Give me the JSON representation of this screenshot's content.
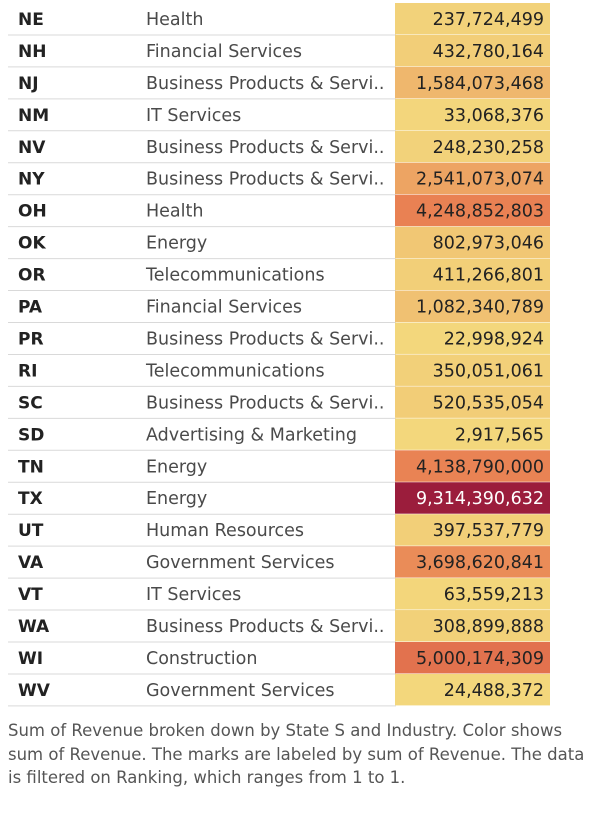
{
  "chart_data": {
    "type": "table",
    "measure": "Sum of Revenue",
    "color_scale": {
      "min_color": "#f3d77c",
      "mid_color": "#e8794f",
      "max_color": "#9b1d3c",
      "min": 2917565,
      "max": 9314390632
    },
    "rows": [
      {
        "state": "NE",
        "industry": "Health",
        "revenue": 237724499,
        "revenue_label": "237,724,499"
      },
      {
        "state": "NH",
        "industry": "Financial Services",
        "revenue": 432780164,
        "revenue_label": "432,780,164"
      },
      {
        "state": "NJ",
        "industry": "Business Products & Servi..",
        "revenue": 1584073468,
        "revenue_label": "1,584,073,468"
      },
      {
        "state": "NM",
        "industry": "IT Services",
        "revenue": 33068376,
        "revenue_label": "33,068,376"
      },
      {
        "state": "NV",
        "industry": "Business Products & Servi..",
        "revenue": 248230258,
        "revenue_label": "248,230,258"
      },
      {
        "state": "NY",
        "industry": "Business Products & Servi..",
        "revenue": 2541073074,
        "revenue_label": "2,541,073,074"
      },
      {
        "state": "OH",
        "industry": "Health",
        "revenue": 4248852803,
        "revenue_label": "4,248,852,803"
      },
      {
        "state": "OK",
        "industry": "Energy",
        "revenue": 802973046,
        "revenue_label": "802,973,046"
      },
      {
        "state": "OR",
        "industry": "Telecommunications",
        "revenue": 411266801,
        "revenue_label": "411,266,801"
      },
      {
        "state": "PA",
        "industry": "Financial Services",
        "revenue": 1082340789,
        "revenue_label": "1,082,340,789"
      },
      {
        "state": "PR",
        "industry": "Business Products & Servi..",
        "revenue": 22998924,
        "revenue_label": "22,998,924"
      },
      {
        "state": "RI",
        "industry": "Telecommunications",
        "revenue": 350051061,
        "revenue_label": "350,051,061"
      },
      {
        "state": "SC",
        "industry": "Business Products & Servi..",
        "revenue": 520535054,
        "revenue_label": "520,535,054"
      },
      {
        "state": "SD",
        "industry": "Advertising & Marketing",
        "revenue": 2917565,
        "revenue_label": "2,917,565"
      },
      {
        "state": "TN",
        "industry": "Energy",
        "revenue": 4138790000,
        "revenue_label": "4,138,790,000"
      },
      {
        "state": "TX",
        "industry": "Energy",
        "revenue": 9314390632,
        "revenue_label": "9,314,390,632"
      },
      {
        "state": "UT",
        "industry": "Human Resources",
        "revenue": 397537779,
        "revenue_label": "397,537,779"
      },
      {
        "state": "VA",
        "industry": "Government Services",
        "revenue": 3698620841,
        "revenue_label": "3,698,620,841"
      },
      {
        "state": "VT",
        "industry": "IT Services",
        "revenue": 63559213,
        "revenue_label": "63,559,213"
      },
      {
        "state": "WA",
        "industry": "Business Products & Servi..",
        "revenue": 308899888,
        "revenue_label": "308,899,888"
      },
      {
        "state": "WI",
        "industry": "Construction",
        "revenue": 5000174309,
        "revenue_label": "5,000,174,309"
      },
      {
        "state": "WV",
        "industry": "Government Services",
        "revenue": 24488372,
        "revenue_label": "24,488,372"
      }
    ]
  },
  "caption": "Sum of Revenue broken down by State S and Industry.  Color shows sum of Revenue.  The marks are labeled by sum of Revenue. The data is filtered on Ranking, which ranges from 1 to 1."
}
